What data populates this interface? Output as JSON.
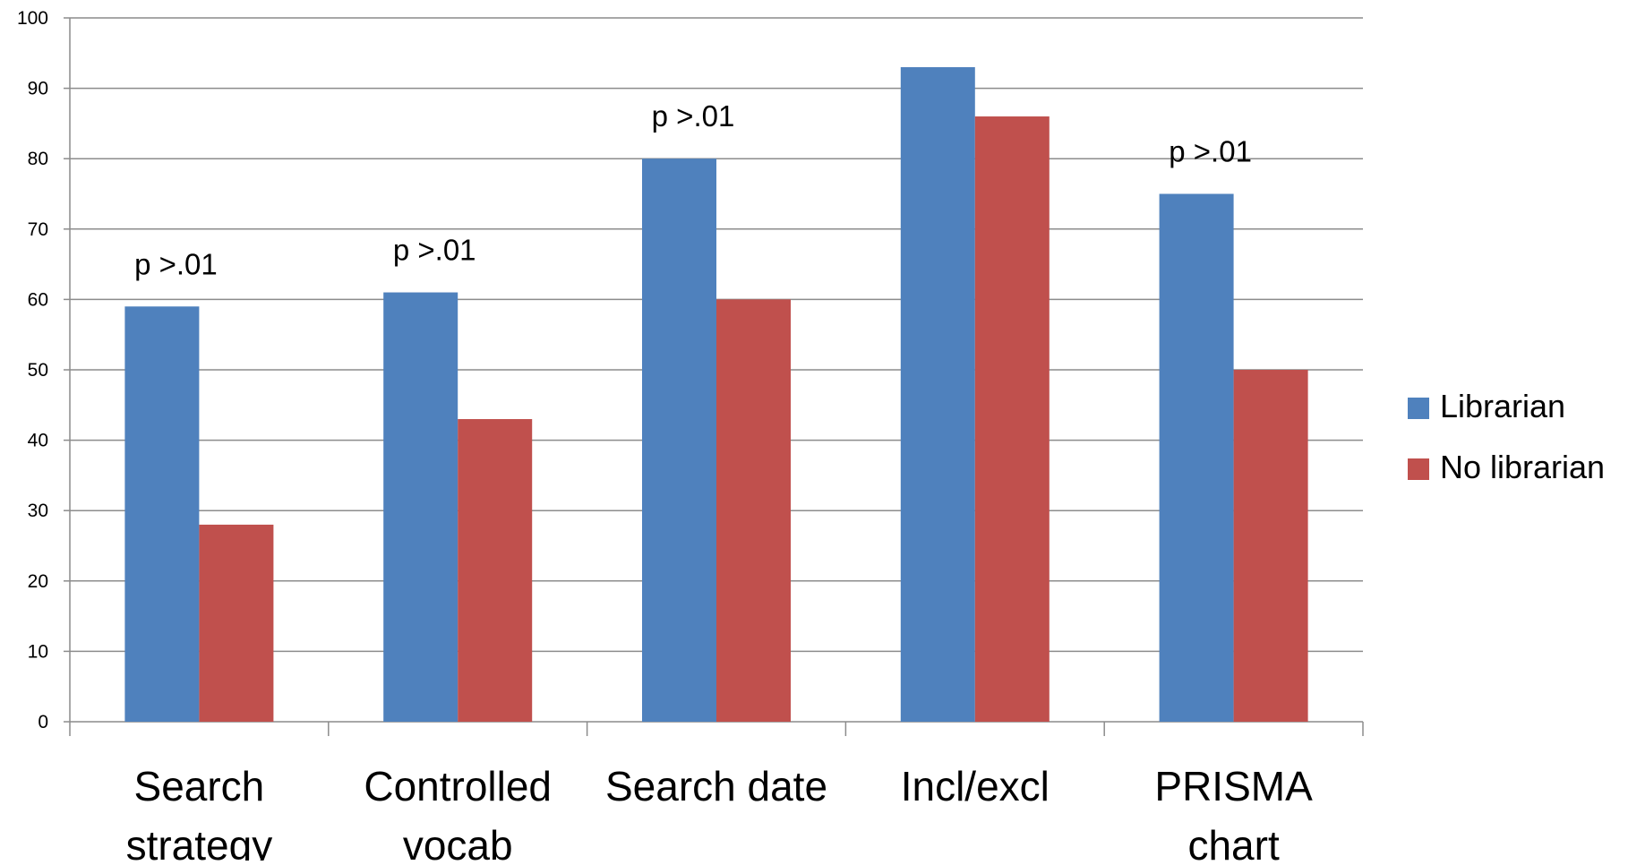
{
  "chart_data": {
    "type": "bar",
    "categories": [
      [
        "Search",
        "strategy"
      ],
      [
        "Controlled",
        "vocab"
      ],
      [
        "Search date"
      ],
      [
        "Incl/excl"
      ],
      [
        "PRISMA",
        "chart"
      ]
    ],
    "series": [
      {
        "name": "Librarian",
        "color": "#4f81bd",
        "values": [
          59,
          61,
          80,
          93,
          75
        ]
      },
      {
        "name": "No librarian",
        "color": "#c0504d",
        "values": [
          28,
          43,
          60,
          86,
          50
        ]
      }
    ],
    "annotations": [
      "p >.01",
      "p >.01",
      "p >.01",
      "",
      "p >.01"
    ],
    "yticks": [
      "0",
      "10",
      "20",
      "30",
      "40",
      "50",
      "60",
      "70",
      "80",
      "90",
      "100"
    ],
    "ylim": [
      0,
      100
    ],
    "grid": true,
    "legend_position": "right",
    "title": "",
    "xlabel": "",
    "ylabel": ""
  }
}
